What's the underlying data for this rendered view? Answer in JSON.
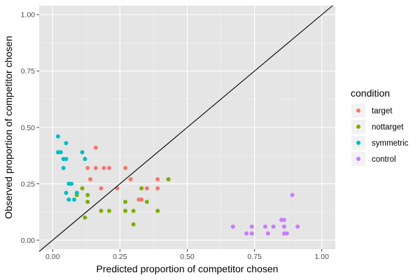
{
  "chart_data": {
    "type": "scatter",
    "xlabel": "Predicted proportion of competitor chosen",
    "ylabel": "Observed proportion of competitor chosen",
    "xlim": [
      -0.05,
      1.05
    ],
    "ylim": [
      -0.04,
      1.04
    ],
    "x_ticks": [
      0.0,
      0.25,
      0.5,
      0.75,
      1.0
    ],
    "x_tick_labels": [
      "0.00",
      "0.25",
      "0.50",
      "0.75",
      "1.00"
    ],
    "y_ticks": [
      0.0,
      0.25,
      0.5,
      0.75,
      1.0
    ],
    "y_tick_labels": [
      "0.00",
      "0.25",
      "0.50",
      "0.75",
      "1.00"
    ],
    "background": "#e5e5e5",
    "grid": true,
    "reference_line": {
      "slope": 1,
      "intercept": 0
    },
    "legend": {
      "title": "condition",
      "position": "right"
    },
    "series": [
      {
        "name": "target",
        "color": "#f8766d",
        "points": [
          [
            0.16,
            0.41
          ],
          [
            0.13,
            0.32
          ],
          [
            0.16,
            0.32
          ],
          [
            0.19,
            0.32
          ],
          [
            0.21,
            0.32
          ],
          [
            0.27,
            0.32
          ],
          [
            0.14,
            0.27
          ],
          [
            0.29,
            0.27
          ],
          [
            0.39,
            0.27
          ],
          [
            0.43,
            0.27
          ],
          [
            0.18,
            0.23
          ],
          [
            0.24,
            0.23
          ],
          [
            0.35,
            0.23
          ],
          [
            0.39,
            0.23
          ],
          [
            0.32,
            0.18
          ],
          [
            0.33,
            0.18
          ]
        ]
      },
      {
        "name": "nottarget",
        "color": "#7cae00",
        "points": [
          [
            0.43,
            0.27
          ],
          [
            0.11,
            0.23
          ],
          [
            0.33,
            0.23
          ],
          [
            0.09,
            0.2
          ],
          [
            0.13,
            0.2
          ],
          [
            0.27,
            0.17
          ],
          [
            0.13,
            0.17
          ],
          [
            0.35,
            0.17
          ],
          [
            0.18,
            0.13
          ],
          [
            0.21,
            0.13
          ],
          [
            0.27,
            0.13
          ],
          [
            0.3,
            0.13
          ],
          [
            0.39,
            0.13
          ],
          [
            0.12,
            0.1
          ],
          [
            0.3,
            0.07
          ]
        ]
      },
      {
        "name": "symmetric",
        "color": "#00bfc4",
        "points": [
          [
            0.02,
            0.46
          ],
          [
            0.05,
            0.43
          ],
          [
            0.02,
            0.39
          ],
          [
            0.03,
            0.39
          ],
          [
            0.11,
            0.39
          ],
          [
            0.04,
            0.36
          ],
          [
            0.05,
            0.36
          ],
          [
            0.12,
            0.36
          ],
          [
            0.04,
            0.32
          ],
          [
            0.07,
            0.25
          ],
          [
            0.06,
            0.25
          ],
          [
            0.05,
            0.21
          ],
          [
            0.09,
            0.21
          ],
          [
            0.06,
            0.18
          ],
          [
            0.08,
            0.18
          ]
        ]
      },
      {
        "name": "control",
        "color": "#c77cff",
        "points": [
          [
            0.89,
            0.2
          ],
          [
            0.85,
            0.09
          ],
          [
            0.86,
            0.09
          ],
          [
            0.67,
            0.06
          ],
          [
            0.74,
            0.06
          ],
          [
            0.79,
            0.06
          ],
          [
            0.82,
            0.06
          ],
          [
            0.86,
            0.06
          ],
          [
            0.91,
            0.06
          ],
          [
            0.72,
            0.03
          ],
          [
            0.74,
            0.03
          ],
          [
            0.8,
            0.03
          ],
          [
            0.86,
            0.03
          ],
          [
            0.87,
            0.03
          ]
        ]
      }
    ]
  }
}
